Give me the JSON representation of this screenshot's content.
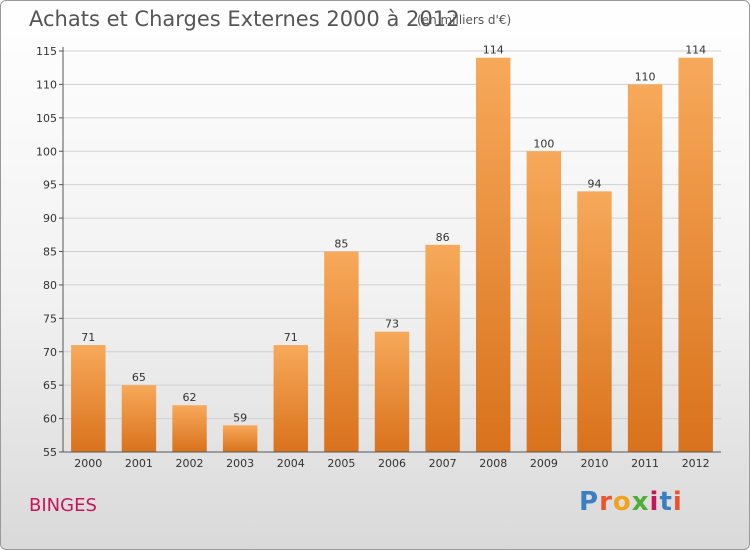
{
  "title": "Achats et Charges Externes 2000 à 2012",
  "subtitle": "(en milliers d'€)",
  "place": "BINGES",
  "logo": {
    "letters": [
      "P",
      "r",
      "o",
      "x",
      "i",
      "t",
      "i"
    ],
    "colors": [
      "#3a7fc1",
      "#e8552c",
      "#f2a21b",
      "#4fae3a",
      "#c8155a",
      "#3a7fc1",
      "#e8552c"
    ]
  },
  "colors": {
    "bar_light": "#f7a95a",
    "bar_dark": "#d9721c",
    "grid": "#d0d0d0",
    "text": "#333333"
  },
  "chart_data": {
    "type": "bar",
    "title": "Achats et Charges Externes 2000 à 2012",
    "subtitle": "(en milliers d'€)",
    "categories": [
      "2000",
      "2001",
      "2002",
      "2003",
      "2004",
      "2005",
      "2006",
      "2007",
      "2008",
      "2009",
      "2010",
      "2011",
      "2012"
    ],
    "values": [
      71,
      65,
      62,
      59,
      71,
      85,
      73,
      86,
      114,
      100,
      94,
      110,
      114
    ],
    "ylim": [
      55,
      115
    ],
    "yticks": [
      55,
      60,
      65,
      70,
      75,
      80,
      85,
      90,
      95,
      100,
      105,
      110,
      115
    ],
    "grid": true
  }
}
